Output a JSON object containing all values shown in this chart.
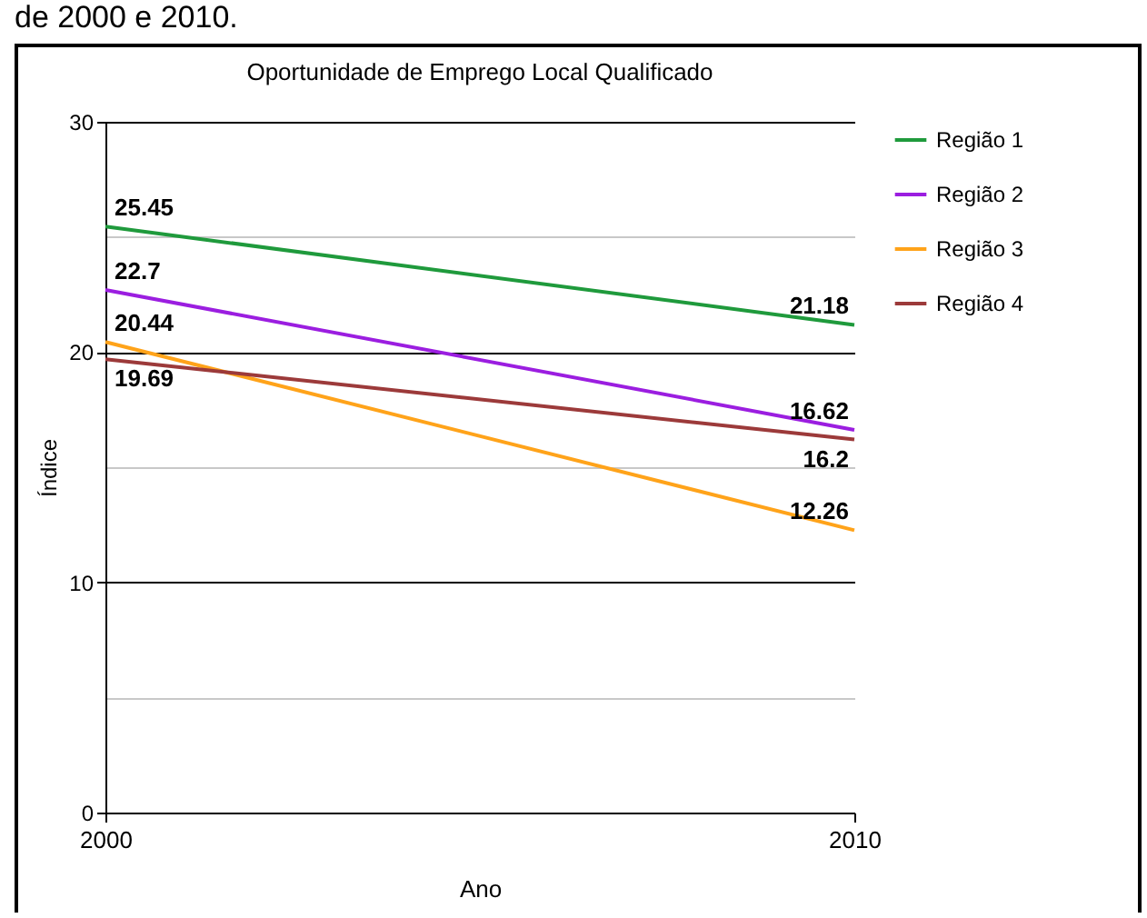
{
  "chart_data": {
    "type": "line",
    "title": "Oportunidade de Emprego Local Qualificado",
    "xlabel": "Ano",
    "ylabel": "Índice",
    "x": [
      2000,
      2010
    ],
    "xlim": [
      2000,
      2010
    ],
    "xticks": [
      2000,
      2010
    ],
    "ylim": [
      0,
      30
    ],
    "yticks": [
      0,
      {
        "value": 5,
        "label": null
      },
      10,
      {
        "value": 15,
        "label": null
      },
      20,
      {
        "value": 25,
        "label": null
      },
      30
    ],
    "series": [
      {
        "name": "Região 1",
        "color": "#1f9a3c",
        "values": [
          25.45,
          21.18
        ]
      },
      {
        "name": "Região 2",
        "color": "#9b1ee0",
        "values": [
          22.7,
          16.62
        ]
      },
      {
        "name": "Região 3",
        "color": "#ffa31a",
        "values": [
          20.44,
          12.26
        ]
      },
      {
        "name": "Região 4",
        "color": "#9c3a3a",
        "values": [
          19.69,
          16.2
        ]
      }
    ],
    "data_labels": true,
    "grid": "y",
    "legend": "right",
    "annotations": [
      "de 2000 e 2010."
    ]
  }
}
